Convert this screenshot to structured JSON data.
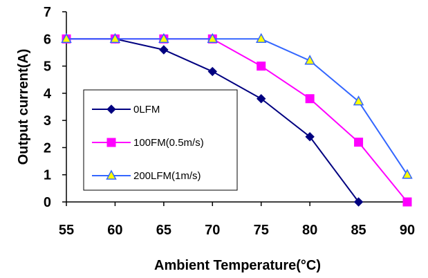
{
  "chart_data": {
    "type": "line",
    "title": "",
    "xlabel": "Ambient Temperature(°C)",
    "ylabel": "Output current(A)",
    "x": [
      55,
      60,
      65,
      70,
      75,
      80,
      85,
      90
    ],
    "xlim": [
      55,
      90
    ],
    "ylim": [
      0,
      7
    ],
    "x_ticks": [
      "55",
      "60",
      "65",
      "70",
      "75",
      "80",
      "85",
      "90"
    ],
    "y_ticks": [
      "0",
      "1",
      "2",
      "3",
      "4",
      "5",
      "6",
      "7"
    ],
    "grid": false,
    "legend_position": "lower-left",
    "series": [
      {
        "name": "0LFM",
        "values": [
          6,
          6,
          5.6,
          4.8,
          3.8,
          2.4,
          0,
          null
        ],
        "color": "#000080",
        "marker": "diamond"
      },
      {
        "name": "100FM(0.5m/s)",
        "values": [
          6,
          6,
          6,
          6,
          5,
          3.8,
          2.2,
          0
        ],
        "color": "#FF00FF",
        "marker": "square"
      },
      {
        "name": "200LFM(1m/s)",
        "values": [
          6,
          6,
          6,
          6,
          6,
          5.2,
          3.7,
          1
        ],
        "color": "#3366FF",
        "marker": "triangle",
        "marker_fill": "#FFFF00"
      }
    ]
  }
}
